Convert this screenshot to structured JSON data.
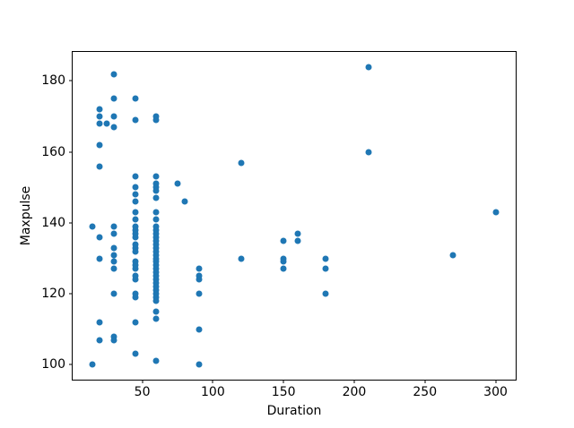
{
  "figure": {
    "background": "#ffffff",
    "spine_color": "#000000",
    "marker_color": "#1f77b4"
  },
  "chart_data": {
    "type": "scatter",
    "title": "",
    "xlabel": "Duration",
    "ylabel": "Maxpulse",
    "grid": false,
    "legend": null,
    "marker_color": "#1f77b4",
    "xlim": [
      0.75,
      314.25
    ],
    "ylim": [
      95.8,
      188.2
    ],
    "x_ticks": [
      50,
      100,
      150,
      200,
      250,
      300
    ],
    "y_ticks": [
      100,
      120,
      140,
      160,
      180
    ],
    "points": [
      [
        15,
        139
      ],
      [
        15,
        100
      ],
      [
        20,
        172
      ],
      [
        20,
        170
      ],
      [
        20,
        168
      ],
      [
        20,
        162
      ],
      [
        20,
        156
      ],
      [
        20,
        136
      ],
      [
        20,
        130
      ],
      [
        20,
        112
      ],
      [
        20,
        107
      ],
      [
        25,
        168
      ],
      [
        30,
        182
      ],
      [
        30,
        175
      ],
      [
        30,
        170
      ],
      [
        30,
        167
      ],
      [
        30,
        139
      ],
      [
        30,
        137
      ],
      [
        30,
        133
      ],
      [
        30,
        131
      ],
      [
        30,
        129
      ],
      [
        30,
        127
      ],
      [
        30,
        120
      ],
      [
        30,
        108
      ],
      [
        30,
        107
      ],
      [
        45,
        175
      ],
      [
        45,
        169
      ],
      [
        45,
        153
      ],
      [
        45,
        150
      ],
      [
        45,
        148
      ],
      [
        45,
        146
      ],
      [
        45,
        143
      ],
      [
        45,
        141
      ],
      [
        45,
        139
      ],
      [
        45,
        138
      ],
      [
        45,
        137
      ],
      [
        45,
        136
      ],
      [
        45,
        134
      ],
      [
        45,
        133
      ],
      [
        45,
        132
      ],
      [
        45,
        129
      ],
      [
        45,
        128
      ],
      [
        45,
        127
      ],
      [
        45,
        125
      ],
      [
        45,
        124
      ],
      [
        45,
        120
      ],
      [
        45,
        119
      ],
      [
        45,
        112
      ],
      [
        45,
        103
      ],
      [
        60,
        170
      ],
      [
        60,
        169
      ],
      [
        60,
        153
      ],
      [
        60,
        151
      ],
      [
        60,
        150
      ],
      [
        60,
        149
      ],
      [
        60,
        147
      ],
      [
        60,
        143
      ],
      [
        60,
        141
      ],
      [
        60,
        139
      ],
      [
        60,
        138
      ],
      [
        60,
        137
      ],
      [
        60,
        136
      ],
      [
        60,
        135
      ],
      [
        60,
        134
      ],
      [
        60,
        133
      ],
      [
        60,
        132
      ],
      [
        60,
        131
      ],
      [
        60,
        130
      ],
      [
        60,
        129
      ],
      [
        60,
        128
      ],
      [
        60,
        127
      ],
      [
        60,
        126
      ],
      [
        60,
        125
      ],
      [
        60,
        124
      ],
      [
        60,
        123
      ],
      [
        60,
        122
      ],
      [
        60,
        121
      ],
      [
        60,
        120
      ],
      [
        60,
        119
      ],
      [
        60,
        118
      ],
      [
        60,
        115
      ],
      [
        60,
        113
      ],
      [
        60,
        101
      ],
      [
        75,
        151
      ],
      [
        80,
        146
      ],
      [
        90,
        127
      ],
      [
        90,
        125
      ],
      [
        90,
        124
      ],
      [
        90,
        120
      ],
      [
        90,
        110
      ],
      [
        90,
        100
      ],
      [
        120,
        157
      ],
      [
        120,
        130
      ],
      [
        150,
        135
      ],
      [
        150,
        130
      ],
      [
        150,
        129
      ],
      [
        150,
        127
      ],
      [
        160,
        137
      ],
      [
        160,
        135
      ],
      [
        180,
        130
      ],
      [
        180,
        127
      ],
      [
        180,
        120
      ],
      [
        210,
        184
      ],
      [
        210,
        160
      ],
      [
        270,
        131
      ],
      [
        300,
        143
      ]
    ]
  }
}
